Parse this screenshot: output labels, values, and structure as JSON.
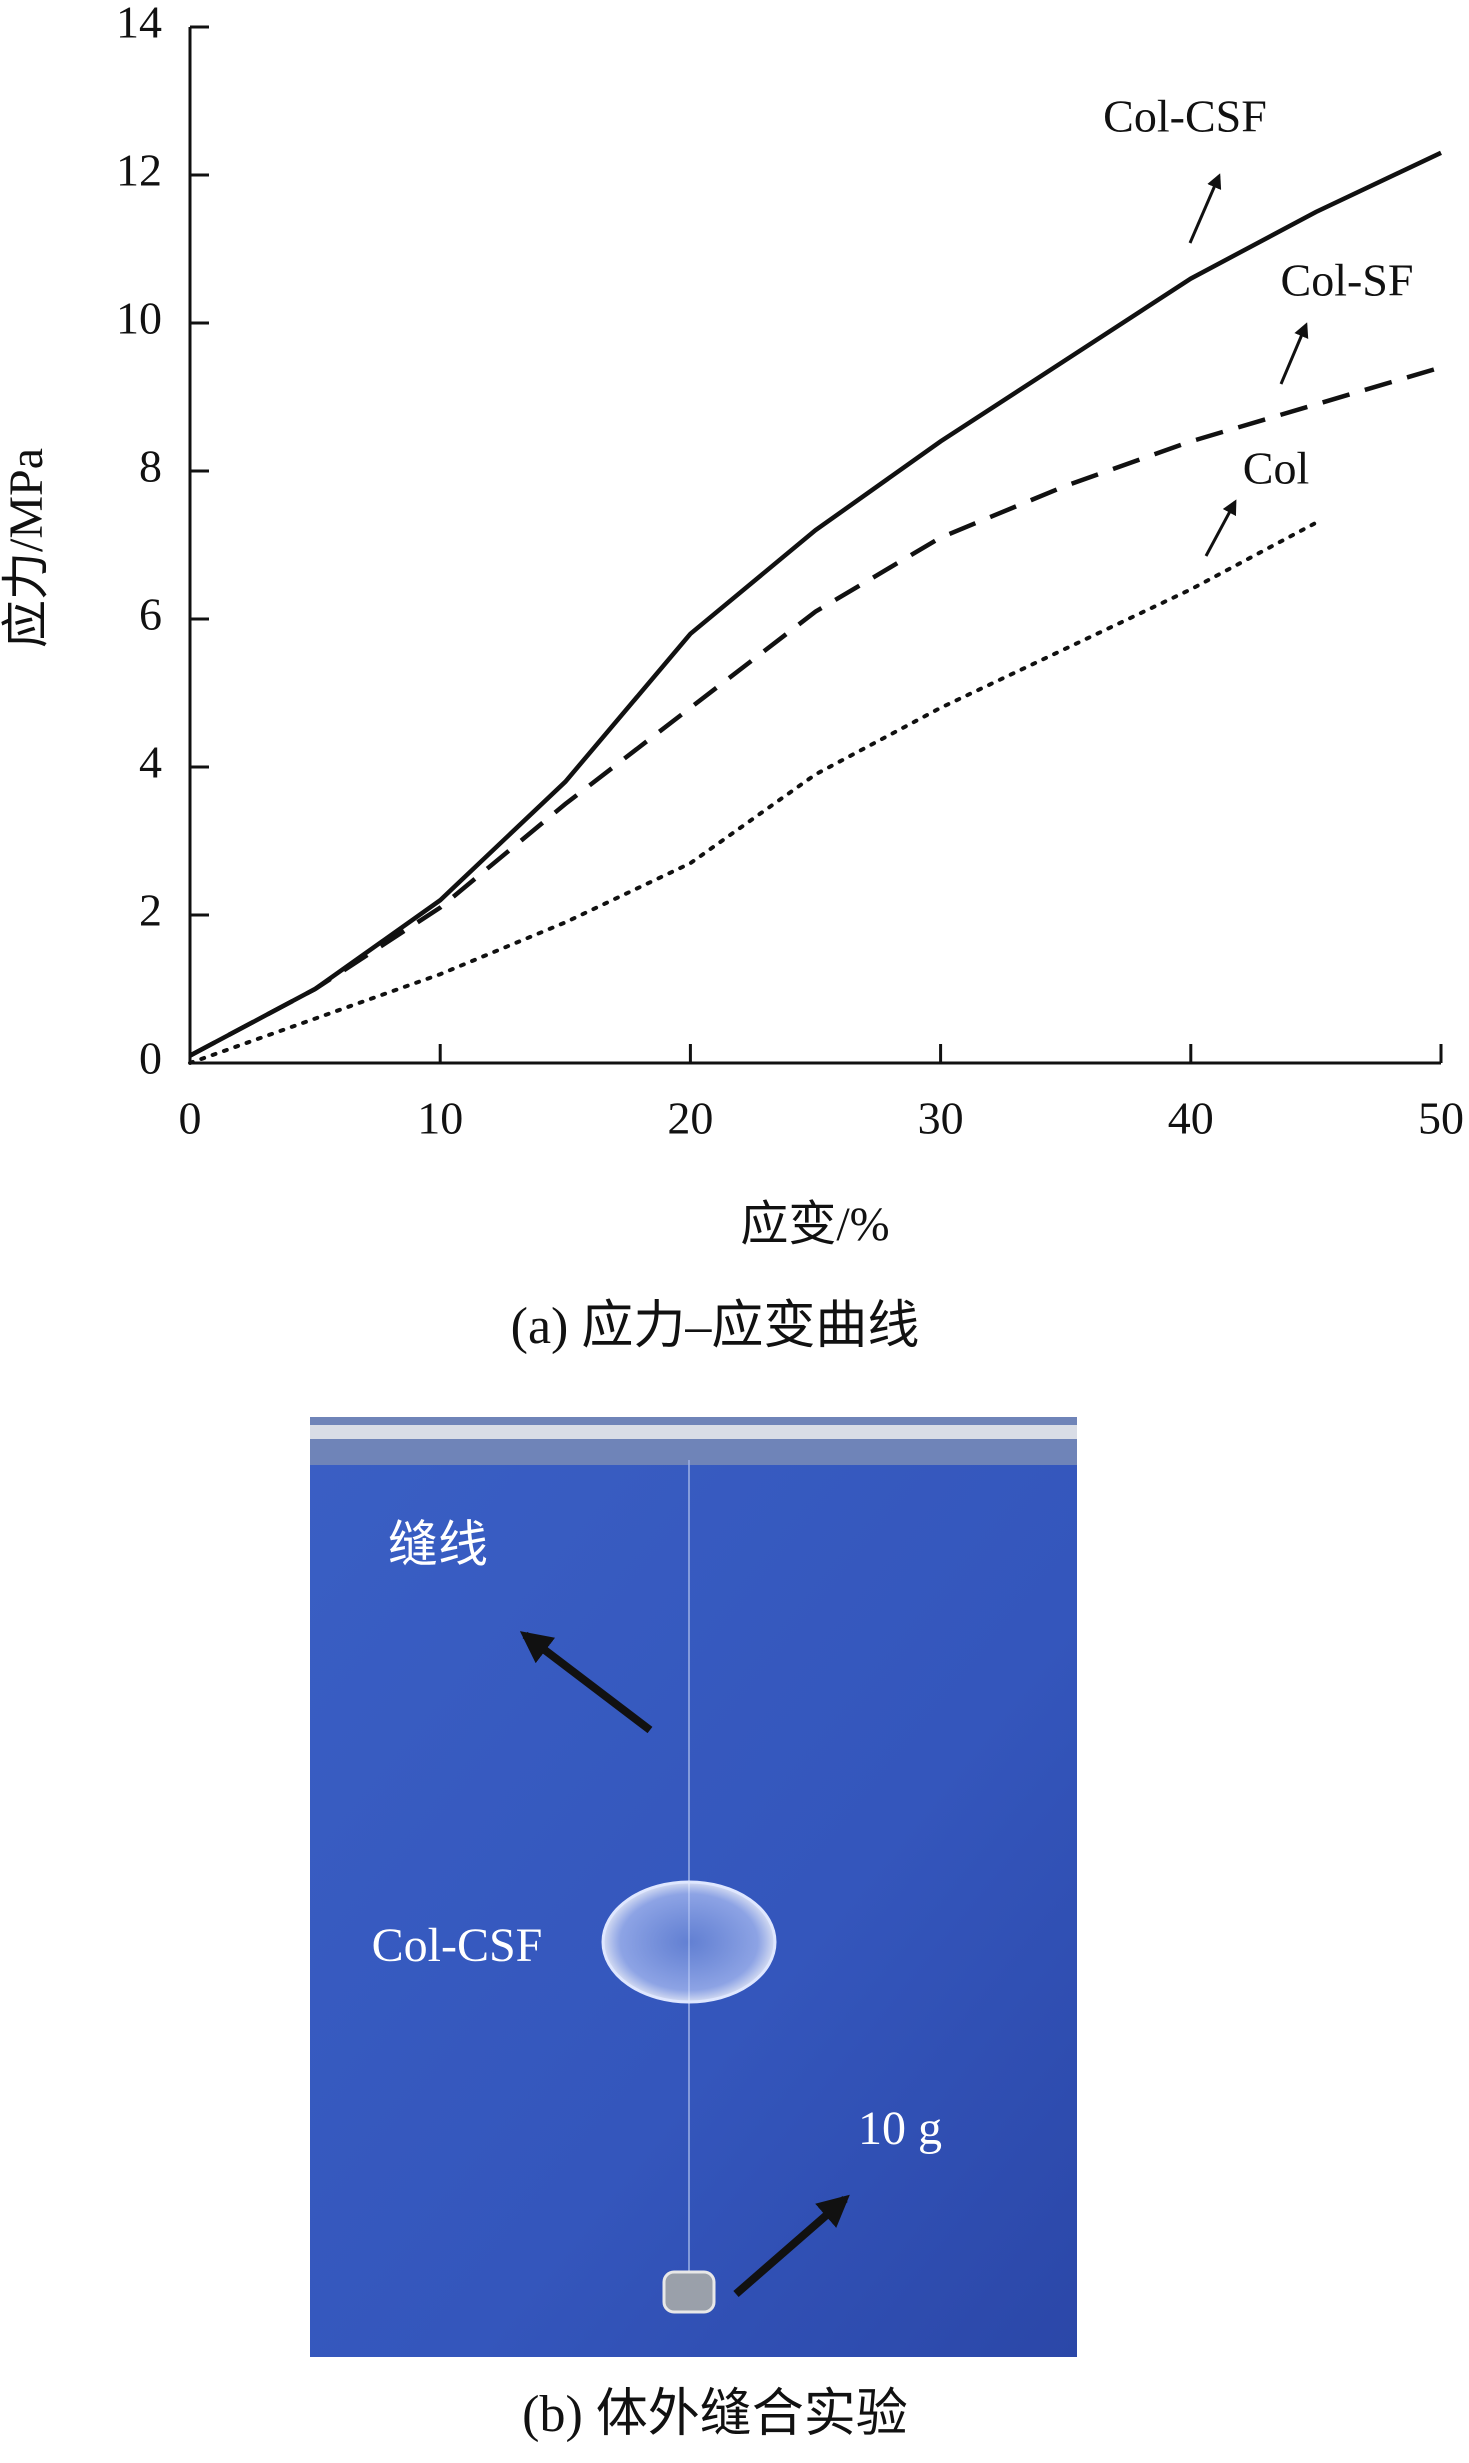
{
  "chart_data": {
    "type": "line",
    "y_label": "应力/MPa",
    "x_label": "应变/%",
    "caption": "(a) 应力–应变曲线",
    "x": [
      0,
      5,
      10,
      15,
      20,
      25,
      30,
      35,
      40,
      45,
      50
    ],
    "series": [
      {
        "name": "Col-CSF",
        "color": "#111111",
        "line_style": "solid",
        "values": [
          0.1,
          1.0,
          2.2,
          3.8,
          5.8,
          7.2,
          8.4,
          9.5,
          10.6,
          11.5,
          12.3
        ]
      },
      {
        "name": "Col-SF",
        "color": "#111111",
        "line_style": "dashed",
        "values": [
          0.1,
          1.0,
          2.1,
          3.5,
          4.8,
          6.1,
          7.1,
          7.8,
          8.4,
          8.9,
          9.4
        ]
      },
      {
        "name": "Col",
        "color": "#111111",
        "line_style": "dotted",
        "values": [
          0,
          0.6,
          1.2,
          1.9,
          2.7,
          3.9,
          4.8,
          5.6,
          6.4,
          7.3,
          null
        ]
      }
    ],
    "xlim": [
      0,
      50
    ],
    "xticks": [
      0,
      10,
      20,
      30,
      40,
      50
    ],
    "ylim": [
      0,
      14
    ],
    "yticks": [
      0,
      2,
      4,
      6,
      8,
      10,
      12,
      14
    ],
    "grid": false
  },
  "photo": {
    "caption": "(b) 体外缝合实验",
    "labels": [
      "缝线",
      "Col-CSF",
      "10 g"
    ]
  }
}
